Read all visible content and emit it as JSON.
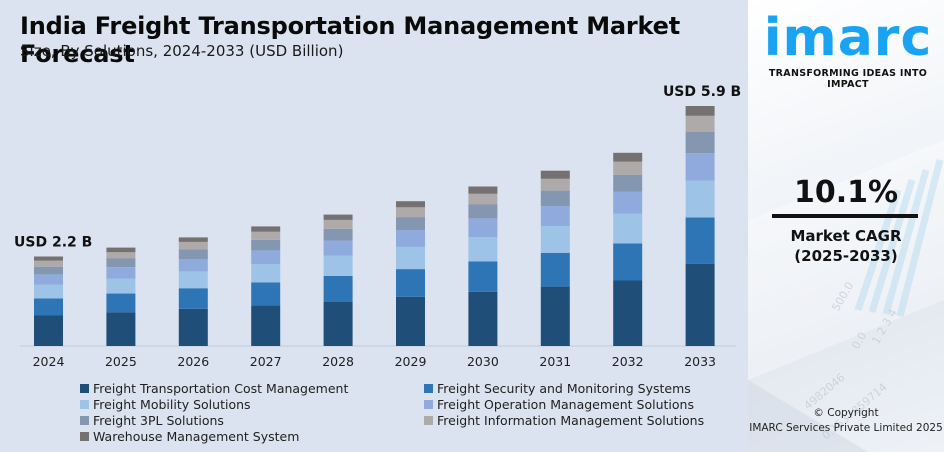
{
  "header": {
    "title": "India Freight Transportation Management Market Forecast",
    "subtitle": "Size, By Solutions, 2024-2033 (USD Billion)"
  },
  "brand": {
    "logo_text": "imarc",
    "tagline": "TRANSFORMING IDEAS INTO IMPACT",
    "logo_color": "#1aa3f0"
  },
  "kpi": {
    "cagr_value": "10.1%",
    "cagr_label": "Market CAGR",
    "cagr_period": "(2025-2033)"
  },
  "footer": {
    "copyright_line1": "© Copyright",
    "copyright_line2": "IMARC Services Private Limited 2025"
  },
  "chart_data": {
    "type": "bar",
    "stacked": true,
    "title": "India Freight Transportation Management Market Forecast",
    "subtitle": "Size, By Solutions, 2024-2033 (USD Billion)",
    "xlabel": "",
    "ylabel": "USD Billion",
    "grid": false,
    "legend_position": "bottom",
    "categories": [
      "2024",
      "2025",
      "2026",
      "2027",
      "2028",
      "2029",
      "2030",
      "2031",
      "2032",
      "2033"
    ],
    "totals": [
      2.2,
      2.42,
      2.67,
      2.94,
      3.23,
      3.56,
      3.92,
      4.31,
      4.75,
      5.9
    ],
    "annotations": [
      {
        "category": "2024",
        "text": "USD 2.2 B"
      },
      {
        "category": "2033",
        "text": "USD 5.9 B"
      }
    ],
    "series": [
      {
        "name": "Freight Transportation Cost Management",
        "color": "#1f4e79",
        "values": [
          0.75,
          0.83,
          0.91,
          1.0,
          1.1,
          1.21,
          1.33,
          1.46,
          1.61,
          2.02
        ]
      },
      {
        "name": "Freight Security and Monitoring Systems",
        "color": "#2e75b6",
        "values": [
          0.42,
          0.46,
          0.51,
          0.56,
          0.62,
          0.68,
          0.75,
          0.83,
          0.91,
          1.14
        ]
      },
      {
        "name": "Freight Mobility Solutions",
        "color": "#9dc3e6",
        "values": [
          0.34,
          0.37,
          0.41,
          0.45,
          0.5,
          0.55,
          0.6,
          0.66,
          0.73,
          0.91
        ]
      },
      {
        "name": "Freight Operation Management Solutions",
        "color": "#8faadc",
        "values": [
          0.25,
          0.28,
          0.31,
          0.34,
          0.37,
          0.41,
          0.45,
          0.49,
          0.54,
          0.67
        ]
      },
      {
        "name": "Freight 3PL Solutions",
        "color": "#8497b0",
        "values": [
          0.19,
          0.21,
          0.24,
          0.26,
          0.29,
          0.32,
          0.35,
          0.38,
          0.42,
          0.52
        ]
      },
      {
        "name": "Freight Information Management Solutions",
        "color": "#aeaaaa",
        "values": [
          0.15,
          0.16,
          0.18,
          0.2,
          0.22,
          0.24,
          0.26,
          0.29,
          0.32,
          0.4
        ]
      },
      {
        "name": "Warehouse Management System",
        "color": "#767171",
        "values": [
          0.1,
          0.11,
          0.11,
          0.13,
          0.13,
          0.15,
          0.18,
          0.2,
          0.22,
          0.24
        ]
      }
    ]
  }
}
